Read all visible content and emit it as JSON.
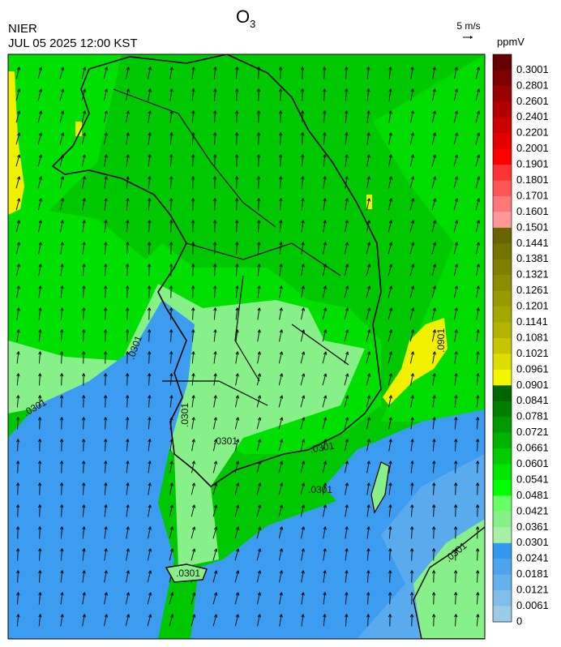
{
  "header": {
    "title": {
      "base": "O",
      "subscript": "3"
    },
    "source": "NIER",
    "datetime": "JUL 05 2025 12:00 KST",
    "wind_scale": "5 m/s"
  },
  "legend": {
    "unit": "ppmV",
    "items": [
      {
        "label": "0.3001",
        "color": "#660000"
      },
      {
        "label": "0.2801",
        "color": "#7f0000"
      },
      {
        "label": "0.2601",
        "color": "#990000"
      },
      {
        "label": "0.2401",
        "color": "#b20000"
      },
      {
        "label": "0.2201",
        "color": "#cc0000"
      },
      {
        "label": "0.2001",
        "color": "#e50000"
      },
      {
        "label": "0.1901",
        "color": "#ff0000"
      },
      {
        "label": "0.1801",
        "color": "#ff3333"
      },
      {
        "label": "0.1701",
        "color": "#ff5555"
      },
      {
        "label": "0.1601",
        "color": "#ff7777"
      },
      {
        "label": "0.1501",
        "color": "#ff9999"
      },
      {
        "label": "0.1441",
        "color": "#666600"
      },
      {
        "label": "0.1381",
        "color": "#737300"
      },
      {
        "label": "0.1321",
        "color": "#808000"
      },
      {
        "label": "0.1261",
        "color": "#8c8c00"
      },
      {
        "label": "0.1201",
        "color": "#999900"
      },
      {
        "label": "0.1141",
        "color": "#a6a600"
      },
      {
        "label": "0.1081",
        "color": "#b3b300"
      },
      {
        "label": "0.1021",
        "color": "#c6c600"
      },
      {
        "label": "0.0961",
        "color": "#dddd00"
      },
      {
        "label": "0.0901",
        "color": "#f5f500"
      },
      {
        "label": "0.0841",
        "color": "#006600"
      },
      {
        "label": "0.0781",
        "color": "#007f00"
      },
      {
        "label": "0.0721",
        "color": "#009900"
      },
      {
        "label": "0.0661",
        "color": "#00b200"
      },
      {
        "label": "0.0601",
        "color": "#00cc00"
      },
      {
        "label": "0.0541",
        "color": "#00e500"
      },
      {
        "label": "0.0481",
        "color": "#00ff00"
      },
      {
        "label": "0.0421",
        "color": "#66ff66"
      },
      {
        "label": "0.0361",
        "color": "#88f088"
      },
      {
        "label": "0.0301",
        "color": "#a8f0a8"
      },
      {
        "label": "0.0241",
        "color": "#3399ee"
      },
      {
        "label": "0.0181",
        "color": "#4da3ee"
      },
      {
        "label": "0.0121",
        "color": "#66b0ee"
      },
      {
        "label": "0.0061",
        "color": "#80bde8"
      },
      {
        "label": "0",
        "color": "#9ccbe8"
      }
    ]
  },
  "contour_labels": [
    ".0301",
    ".0301",
    ".0301",
    ".0301",
    ".0301",
    ".0301",
    ".0301",
    ".0301",
    ".0901"
  ]
}
